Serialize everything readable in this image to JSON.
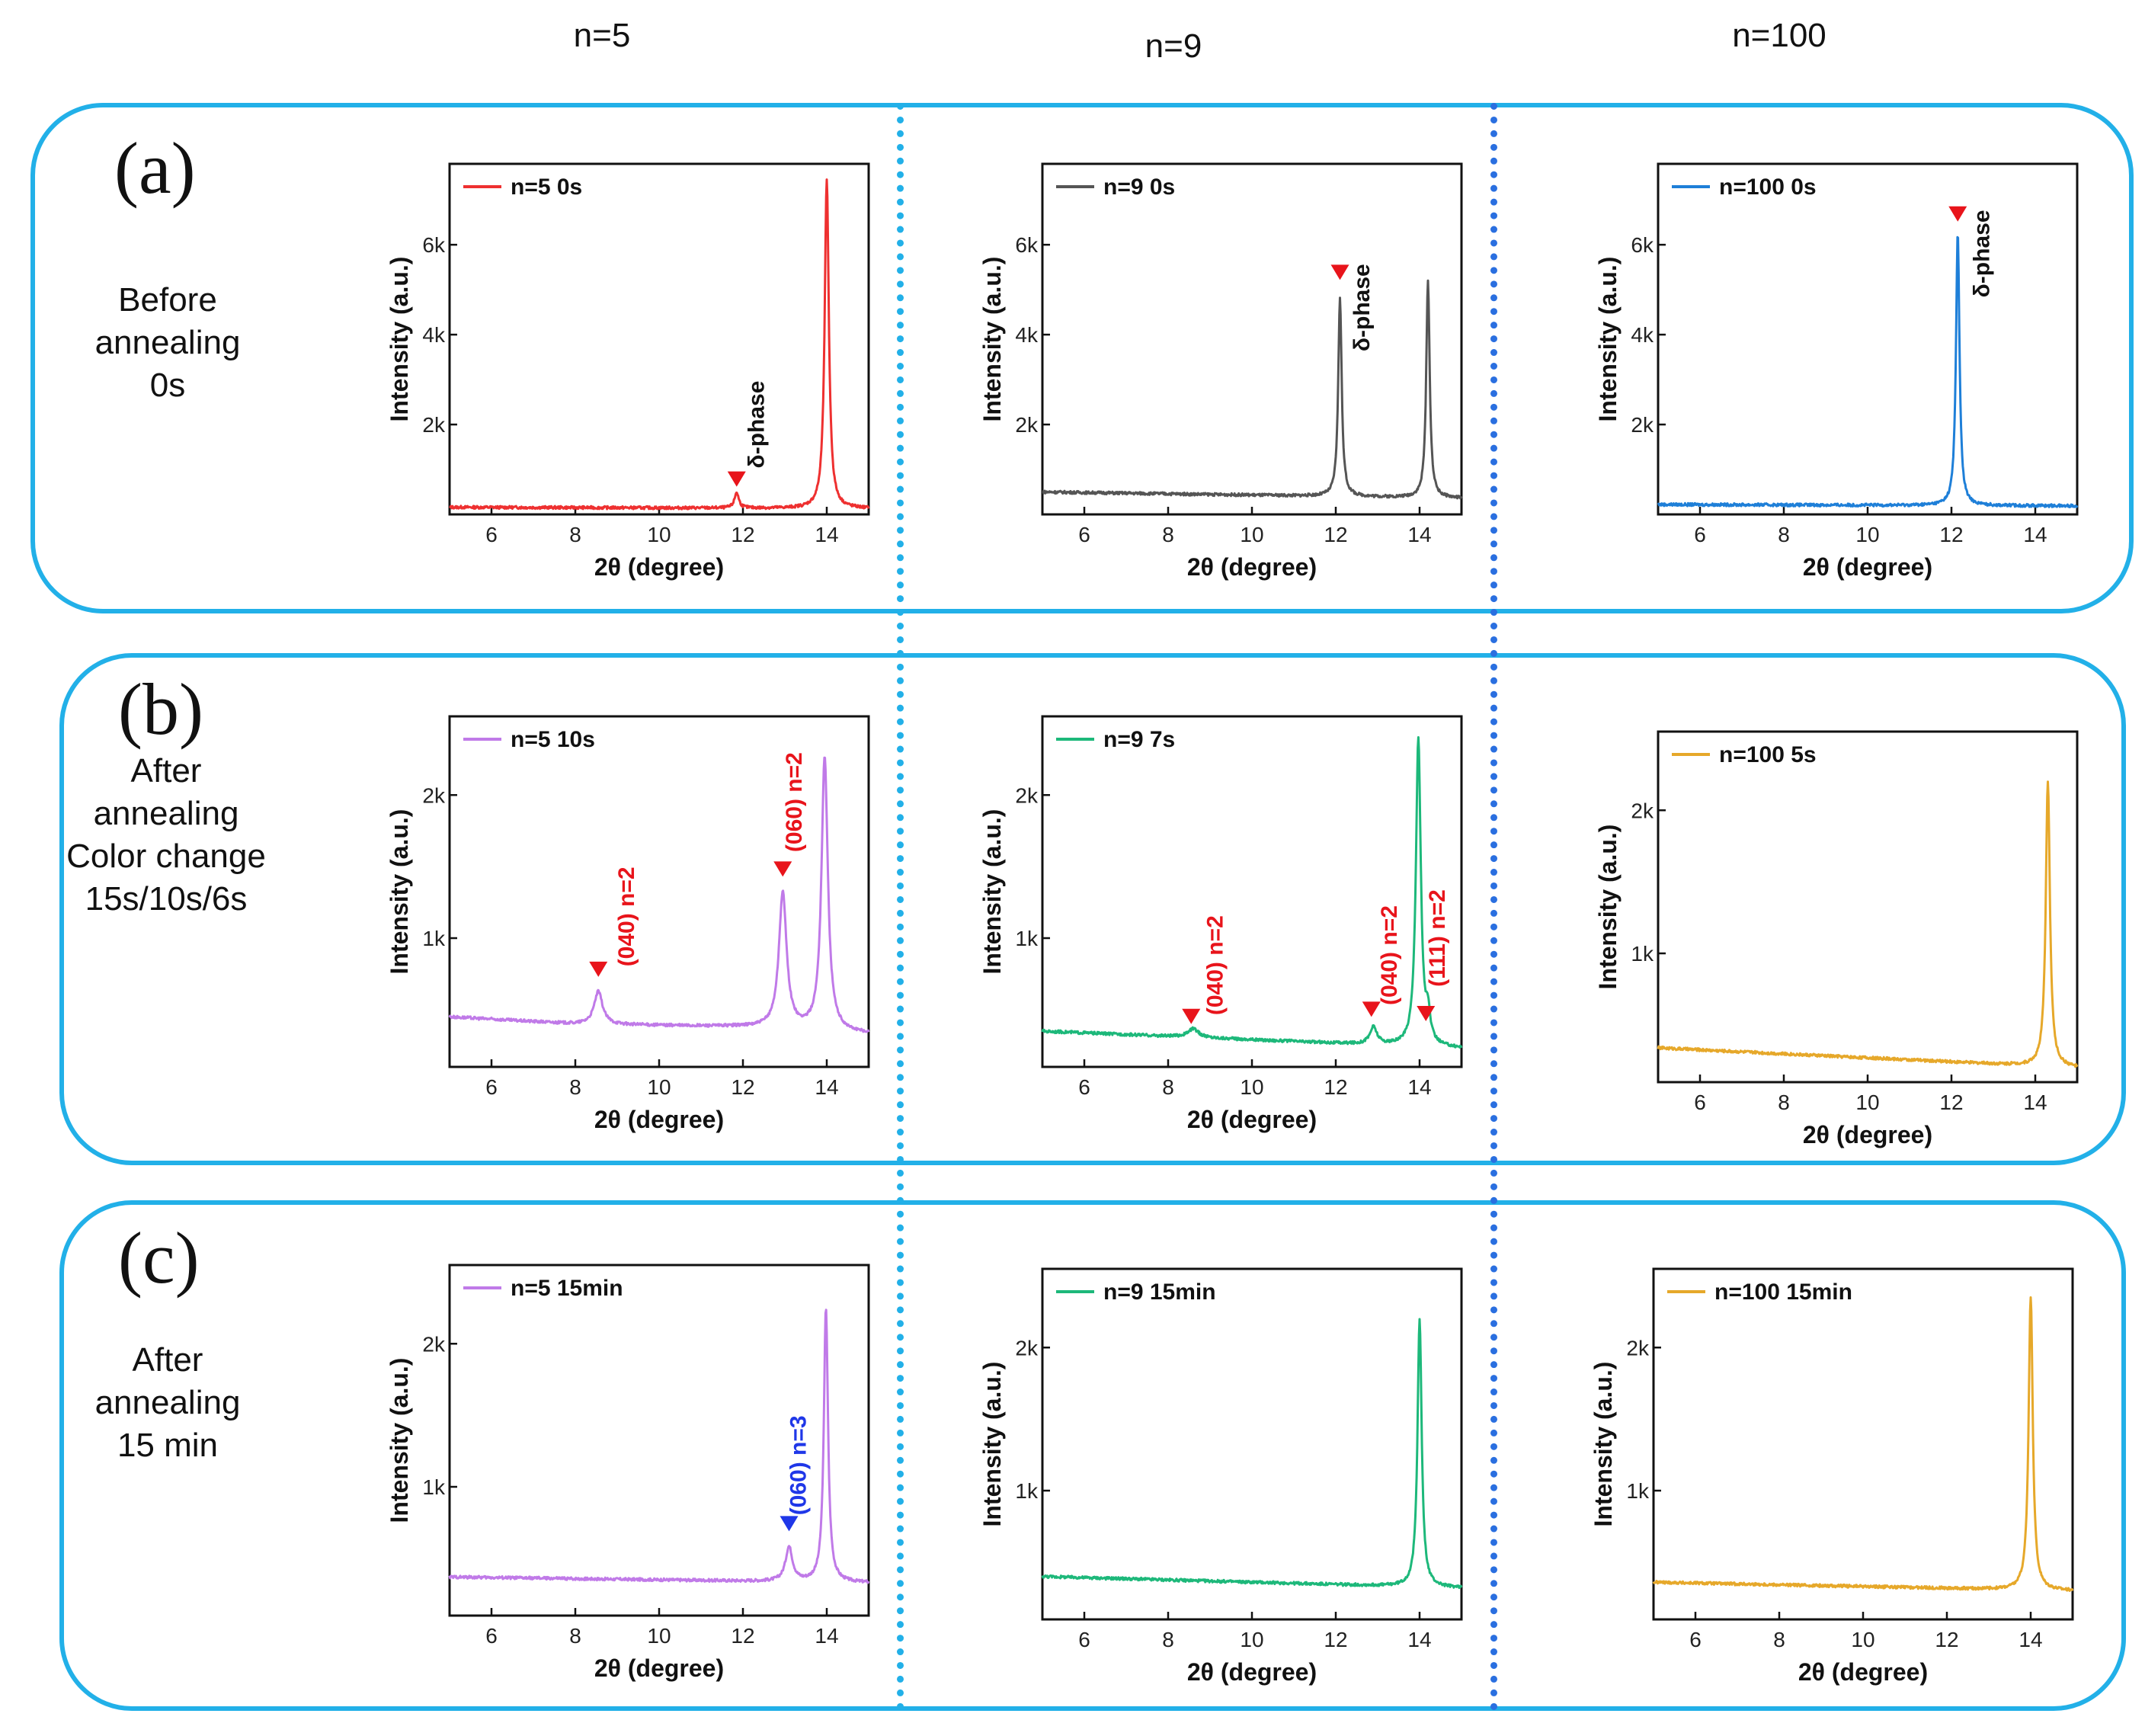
{
  "column_headers": [
    "n=5",
    "n=9",
    "n=100"
  ],
  "rows": [
    {
      "letter": "(a)",
      "label_lines": [
        "Before",
        "annealing",
        "0s"
      ]
    },
    {
      "letter": "(b)",
      "label_lines": [
        "After",
        "annealing",
        "Color change",
        "15s/10s/6s"
      ]
    },
    {
      "letter": "(c)",
      "label_lines": [
        "After",
        "annealing",
        "15 min"
      ]
    }
  ],
  "colors": {
    "panel_border": "#22b0e8",
    "separator_1": "#22b0e8",
    "separator_2": "#2a6fe0",
    "marker_red": "#e8141b",
    "marker_blue": "#1f37e8"
  },
  "chart_data": [
    {
      "id": "a1",
      "type": "line",
      "legend": "n=5 0s",
      "color": "#ee3030",
      "xlabel": "2θ (degree)",
      "ylabel": "Intensity (a.u.)",
      "xlim": [
        5,
        15
      ],
      "ylim": [
        0,
        7800
      ],
      "xticks": [
        6,
        8,
        10,
        12,
        14
      ],
      "yticks": [
        2000,
        4000,
        6000
      ],
      "ytick_labels": [
        "2k",
        "4k",
        "6k"
      ],
      "series": {
        "base": [
          [
            5,
            160
          ],
          [
            15,
            130
          ]
        ],
        "peaks": [
          [
            11.85,
            350,
            0.06
          ],
          [
            14.0,
            7300,
            0.06
          ]
        ]
      },
      "annotations": [
        {
          "x": 11.85,
          "y": 650,
          "marker": "down-triangle",
          "color": "#e8141b",
          "text": "δ-phase",
          "text_color": "#111111",
          "text_x": 12.5,
          "text_y": 2000
        }
      ]
    },
    {
      "id": "a2",
      "type": "line",
      "legend": "n=9 0s",
      "color": "#555555",
      "xlabel": "2θ (degree)",
      "ylabel": "Intensity (a.u.)",
      "xlim": [
        5,
        15
      ],
      "ylim": [
        0,
        7800
      ],
      "xticks": [
        6,
        8,
        10,
        12,
        14
      ],
      "yticks": [
        2000,
        4000,
        6000
      ],
      "ytick_labels": [
        "2k",
        "4k",
        "6k"
      ],
      "series": {
        "base": [
          [
            5,
            500
          ],
          [
            15,
            360
          ]
        ],
        "peaks": [
          [
            12.1,
            4400,
            0.05
          ],
          [
            14.2,
            4800,
            0.05
          ]
        ]
      },
      "annotations": [
        {
          "x": 12.1,
          "y": 5250,
          "marker": "down-triangle",
          "color": "#e8141b",
          "text": "δ-phase",
          "text_color": "#111111",
          "text_x": 12.8,
          "text_y": 4600
        }
      ]
    },
    {
      "id": "a3",
      "type": "line",
      "legend": "n=100 0s",
      "color": "#1e7fd8",
      "xlabel": "2θ (degree)",
      "ylabel": "Intensity (a.u.)",
      "xlim": [
        5,
        15
      ],
      "ylim": [
        0,
        7800
      ],
      "xticks": [
        6,
        8,
        10,
        12,
        14
      ],
      "yticks": [
        2000,
        4000,
        6000
      ],
      "ytick_labels": [
        "2k",
        "4k",
        "6k"
      ],
      "series": {
        "base": [
          [
            5,
            220
          ],
          [
            15,
            190
          ]
        ],
        "peaks": [
          [
            12.15,
            6100,
            0.05
          ]
        ]
      },
      "annotations": [
        {
          "x": 12.15,
          "y": 6550,
          "marker": "down-triangle",
          "color": "#e8141b",
          "text": "δ-phase",
          "text_color": "#111111",
          "text_x": 12.9,
          "text_y": 5800
        }
      ]
    },
    {
      "id": "b1",
      "type": "line",
      "legend": "n=5 10s",
      "color": "#c07ae8",
      "xlabel": "2θ (degree)",
      "ylabel": "Intensity (a.u.)",
      "xlim": [
        5,
        15
      ],
      "ylim": [
        100,
        2550
      ],
      "xticks": [
        6,
        8,
        10,
        12,
        14
      ],
      "yticks": [
        1000,
        2000
      ],
      "ytick_labels": [
        "1k",
        "2k"
      ],
      "series": {
        "base": [
          [
            5,
            450
          ],
          [
            8,
            400
          ],
          [
            12,
            380
          ],
          [
            15,
            330
          ]
        ],
        "peaks": [
          [
            8.55,
            230,
            0.12
          ],
          [
            12.95,
            950,
            0.11
          ],
          [
            13.95,
            1920,
            0.09
          ]
        ]
      },
      "annotations": [
        {
          "x": 8.55,
          "y": 740,
          "marker": "down-triangle",
          "color": "#e8141b",
          "text": "(040) n=2",
          "text_color": "#e8141b",
          "text_x": 9.4,
          "text_y": 1150
        },
        {
          "x": 12.95,
          "y": 1440,
          "marker": "down-triangle",
          "color": "#e8141b",
          "text": "(060) n=2",
          "text_color": "#e8141b",
          "text_x": 13.4,
          "text_y": 1950
        }
      ]
    },
    {
      "id": "b2",
      "type": "line",
      "legend": "n=9 7s",
      "color": "#1db87a",
      "xlabel": "2θ (degree)",
      "ylabel": "Intensity (a.u.)",
      "xlim": [
        5,
        15
      ],
      "ylim": [
        100,
        2550
      ],
      "xticks": [
        6,
        8,
        10,
        12,
        14
      ],
      "yticks": [
        1000,
        2000
      ],
      "ytick_labels": [
        "1k",
        "2k"
      ],
      "series": {
        "base": [
          [
            5,
            350
          ],
          [
            15,
            230
          ]
        ],
        "peaks": [
          [
            8.6,
            60,
            0.15
          ],
          [
            12.9,
            120,
            0.1
          ],
          [
            13.97,
            2150,
            0.07
          ],
          [
            14.2,
            180,
            0.06
          ]
        ]
      },
      "annotations": [
        {
          "x": 8.55,
          "y": 410,
          "marker": "down-triangle",
          "color": "#e8141b",
          "text": "(040) n=2",
          "text_color": "#e8141b",
          "text_x": 9.3,
          "text_y": 810
        },
        {
          "x": 12.85,
          "y": 460,
          "marker": "down-triangle",
          "color": "#e8141b",
          "text": "(040) n=2",
          "text_color": "#e8141b",
          "text_x": 13.45,
          "text_y": 880
        },
        {
          "x": 14.15,
          "y": 430,
          "marker": "down-triangle",
          "color": "#e8141b",
          "text": "(111) n=2",
          "text_color": "#e8141b",
          "text_x": 14.6,
          "text_y": 1000
        }
      ]
    },
    {
      "id": "b3",
      "type": "line",
      "legend": "n=100  5s",
      "color": "#e6a82a",
      "xlabel": "2θ (degree)",
      "ylabel": "Intensity (a.u.)",
      "xlim": [
        5,
        15
      ],
      "ylim": [
        100,
        2550
      ],
      "xticks": [
        6,
        8,
        10,
        12,
        14
      ],
      "yticks": [
        1000,
        2000
      ],
      "ytick_labels": [
        "1k",
        "2k"
      ],
      "series": {
        "base": [
          [
            5,
            340
          ],
          [
            15,
            200
          ]
        ],
        "peaks": [
          [
            14.3,
            1990,
            0.06
          ]
        ]
      },
      "annotations": []
    },
    {
      "id": "c1",
      "type": "line",
      "legend": "n=5 15min",
      "color": "#c07ae8",
      "xlabel": "2θ (degree)",
      "ylabel": "Intensity (a.u.)",
      "xlim": [
        5,
        15
      ],
      "ylim": [
        100,
        2550
      ],
      "xticks": [
        6,
        8,
        10,
        12,
        14
      ],
      "yticks": [
        1000,
        2000
      ],
      "ytick_labels": [
        "1k",
        "2k"
      ],
      "series": {
        "base": [
          [
            5,
            370
          ],
          [
            15,
            330
          ]
        ],
        "peaks": [
          [
            13.1,
            240,
            0.1
          ],
          [
            13.98,
            1920,
            0.06
          ]
        ]
      },
      "annotations": [
        {
          "x": 13.1,
          "y": 700,
          "marker": "down-triangle",
          "color": "#1f37e8",
          "text": "(060) n=3",
          "text_color": "#1f37e8",
          "text_x": 13.5,
          "text_y": 1150
        }
      ]
    },
    {
      "id": "c2",
      "type": "line",
      "legend": "n=9 15min",
      "color": "#1db87a",
      "xlabel": "2θ (degree)",
      "ylabel": "Intensity (a.u.)",
      "xlim": [
        5,
        15
      ],
      "ylim": [
        100,
        2550
      ],
      "xticks": [
        6,
        8,
        10,
        12,
        14
      ],
      "yticks": [
        1000,
        2000
      ],
      "ytick_labels": [
        "1k",
        "2k"
      ],
      "series": {
        "base": [
          [
            5,
            400
          ],
          [
            15,
            320
          ]
        ],
        "peaks": [
          [
            14.0,
            1870,
            0.06
          ]
        ]
      },
      "annotations": []
    },
    {
      "id": "c3",
      "type": "line",
      "legend": "n=100 15min",
      "color": "#e6a82a",
      "xlabel": "2θ (degree)",
      "ylabel": "Intensity (a.u.)",
      "xlim": [
        5,
        15
      ],
      "ylim": [
        100,
        2550
      ],
      "xticks": [
        6,
        8,
        10,
        12,
        14
      ],
      "yticks": [
        1000,
        2000
      ],
      "ytick_labels": [
        "1k",
        "2k"
      ],
      "series": {
        "base": [
          [
            5,
            360
          ],
          [
            15,
            300
          ]
        ],
        "peaks": [
          [
            14.0,
            2050,
            0.06
          ]
        ]
      },
      "annotations": []
    }
  ]
}
